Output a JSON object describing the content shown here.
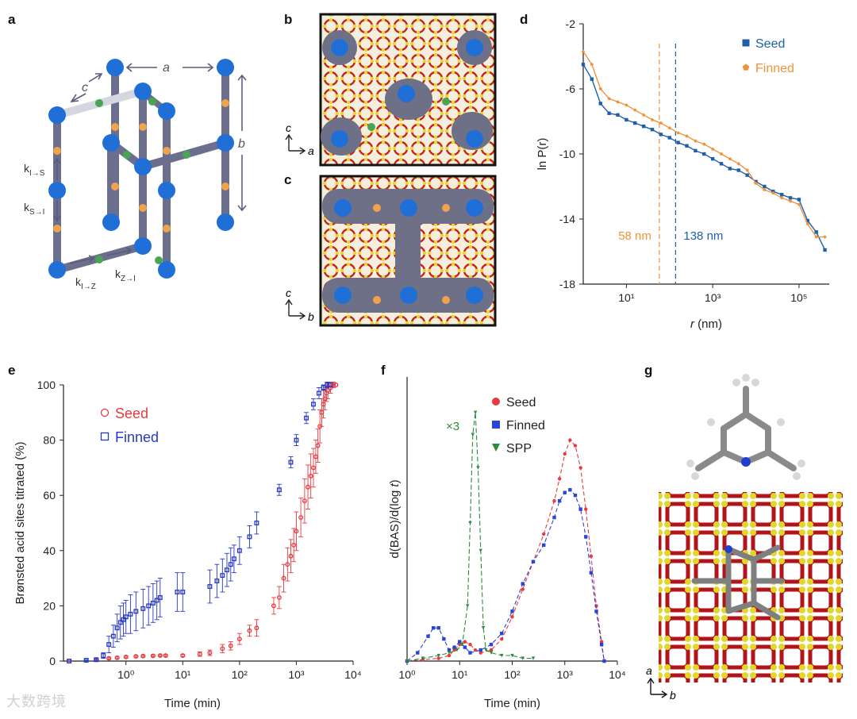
{
  "panel_labels": {
    "a": "a",
    "b": "b",
    "c": "c",
    "d": "d",
    "e": "e",
    "f": "f",
    "g": "g"
  },
  "panel_a": {
    "lattice_a": "a",
    "lattice_b": "b",
    "lattice_c": "c",
    "k_I_S": "k",
    "k_I_S_sub": "I→S",
    "k_S_I": "k",
    "k_S_I_sub": "S→I",
    "k_I_Z": "k",
    "k_I_Z_sub": "I→Z",
    "k_Z_I": "k",
    "k_Z_I_sub": "Z→I",
    "colors": {
      "site": "#1f6fd6",
      "bar": "#6b6e8c",
      "green": "#4aa552",
      "orange": "#f0a34c"
    }
  },
  "panel_b": {
    "axis_up": "c",
    "axis_right": "a"
  },
  "panel_c": {
    "axis_up": "c",
    "axis_right": "b"
  },
  "panel_g": {
    "axis_up": "a",
    "axis_right": "b"
  },
  "chart_data": [
    {
      "id": "d",
      "type": "line",
      "title": "",
      "xlabel": "r (nm)",
      "xlabel_italic": "r",
      "xlabel_unit": " (nm)",
      "ylabel": "ln P(r)",
      "x_scale": "log10",
      "xlim_exp": [
        0,
        5.7
      ],
      "ylim": [
        -18,
        -2
      ],
      "xticks": [
        "10¹",
        "10³",
        "10⁵"
      ],
      "xtick_exps": [
        1,
        3,
        5
      ],
      "yticks": [
        -18,
        -14,
        -10,
        -6,
        -2
      ],
      "legend_position": "top-right",
      "series": [
        {
          "name": "Seed",
          "color": "#1f5fa8",
          "marker": "square",
          "log_x": [
            0,
            0.2,
            0.4,
            0.6,
            0.8,
            1.0,
            1.2,
            1.4,
            1.6,
            1.8,
            2.0,
            2.2,
            2.4,
            2.6,
            2.8,
            3.0,
            3.2,
            3.4,
            3.6,
            3.8,
            4.0,
            4.2,
            4.4,
            4.6,
            4.8,
            5.0,
            5.2,
            5.4,
            5.6
          ],
          "y": [
            -4.5,
            -5.4,
            -6.9,
            -7.5,
            -7.6,
            -7.9,
            -8.1,
            -8.3,
            -8.5,
            -8.8,
            -9.0,
            -9.3,
            -9.5,
            -9.8,
            -10.0,
            -10.3,
            -10.6,
            -10.9,
            -11.0,
            -11.3,
            -11.7,
            -12.0,
            -12.3,
            -12.5,
            -12.7,
            -12.8,
            -14.1,
            -14.8,
            -15.9
          ]
        },
        {
          "name": "Finned",
          "color": "#f0923a",
          "marker": "pentagon",
          "log_x": [
            0,
            0.2,
            0.4,
            0.6,
            0.8,
            1.0,
            1.2,
            1.4,
            1.6,
            1.8,
            2.0,
            2.2,
            2.4,
            2.6,
            2.8,
            3.0,
            3.2,
            3.4,
            3.6,
            3.8,
            4.0,
            4.2,
            4.4,
            4.6,
            4.8,
            5.0,
            5.2,
            5.4,
            5.6
          ],
          "y": [
            -3.7,
            -4.5,
            -6.0,
            -6.6,
            -6.8,
            -7.0,
            -7.3,
            -7.6,
            -7.9,
            -8.1,
            -8.4,
            -8.7,
            -8.9,
            -9.2,
            -9.4,
            -9.7,
            -10.0,
            -10.3,
            -10.6,
            -11.0,
            -11.8,
            -12.2,
            -12.4,
            -12.7,
            -12.9,
            -13.1,
            -14.3,
            -15.1,
            -15.1
          ]
        }
      ],
      "annotations": [
        {
          "text": "58 nm",
          "x_nm": 58,
          "color": "#f0923a"
        },
        {
          "text": "138 nm",
          "x_nm": 138,
          "color": "#1f5fa8"
        }
      ]
    },
    {
      "id": "e",
      "type": "scatter",
      "xlabel": "Time (min)",
      "ylabel": "Brønsted acid sites titrated (%)",
      "x_scale": "log10",
      "xlim_exp": [
        -1.1,
        4
      ],
      "ylim": [
        0,
        100
      ],
      "xticks": [
        "10⁰",
        "10¹",
        "10²",
        "10³",
        "10⁴"
      ],
      "xtick_exps": [
        0,
        1,
        2,
        3,
        4
      ],
      "yticks": [
        0,
        20,
        40,
        60,
        80,
        100
      ],
      "legend_position": "top-left",
      "series": [
        {
          "name": "Seed",
          "color": "#e8393f",
          "marker": "open-circle",
          "x": [
            0.1,
            0.3,
            0.5,
            0.7,
            1,
            1.5,
            2,
            3,
            4,
            5,
            10,
            20,
            30,
            50,
            70,
            100,
            150,
            200,
            400,
            500,
            600,
            700,
            800,
            900,
            1000,
            1200,
            1400,
            1600,
            1800,
            2000,
            2200,
            2400,
            2600,
            2800,
            3000,
            3200,
            3400,
            3600,
            4000,
            4500,
            5000
          ],
          "y": [
            0,
            0.5,
            1,
            1.2,
            1.5,
            1.7,
            1.8,
            1.9,
            2,
            2,
            2,
            2.5,
            3,
            4.5,
            5.5,
            8,
            11,
            12,
            20,
            23,
            30,
            35,
            38,
            42,
            47,
            52,
            58,
            63,
            67,
            70,
            74,
            78,
            85,
            90,
            93,
            95,
            97,
            98,
            99,
            100,
            100
          ],
          "err": [
            0,
            0.2,
            0.3,
            0.3,
            0.3,
            0.3,
            0.3,
            0.3,
            0.3,
            0.3,
            0.4,
            0.8,
            1,
            1.5,
            1.5,
            2,
            2,
            3,
            3,
            4,
            5,
            6,
            6,
            6,
            7,
            7,
            8,
            8,
            8,
            7,
            6,
            6,
            6,
            5,
            5,
            4,
            3,
            3,
            2,
            1,
            0
          ]
        },
        {
          "name": "Finned",
          "color": "#2638c8",
          "marker": "open-square",
          "x": [
            0.1,
            0.2,
            0.3,
            0.4,
            0.5,
            0.6,
            0.7,
            0.8,
            0.9,
            1,
            1.2,
            1.5,
            2,
            2.5,
            3,
            3.5,
            4,
            8,
            10,
            30,
            40,
            50,
            60,
            70,
            80,
            100,
            150,
            200,
            500,
            800,
            1000,
            1500,
            2000,
            2500,
            3000,
            3500,
            4000
          ],
          "y": [
            0,
            0.3,
            0.5,
            2,
            6,
            9,
            12,
            14,
            15,
            16,
            17,
            18,
            19,
            20,
            21,
            22,
            23,
            25,
            25,
            27,
            29,
            31,
            33,
            35,
            37,
            40,
            45,
            50,
            62,
            72,
            80,
            88,
            93,
            97,
            99,
            100,
            100
          ],
          "err": [
            0,
            0.2,
            0.3,
            1,
            3,
            4,
            5,
            6,
            6,
            6,
            7,
            7,
            7,
            7,
            7,
            7,
            7,
            7,
            7,
            6,
            6,
            6,
            6,
            6,
            5,
            5,
            4,
            4,
            2,
            2,
            2,
            2,
            2,
            2,
            1,
            1,
            0
          ]
        }
      ]
    },
    {
      "id": "f",
      "type": "line",
      "xlabel": "Time (min)",
      "ylabel": "d(BAS)/d(log t)",
      "ylabel_prefix": "d(BAS)/d(log ",
      "ylabel_italic": "t",
      "ylabel_suffix": ")",
      "x_scale": "log10",
      "xlim_exp": [
        0,
        4
      ],
      "ylim": [
        0,
        1
      ],
      "xticks": [
        "10⁰",
        "10¹",
        "10²",
        "10³",
        "10⁴"
      ],
      "xtick_exps": [
        0,
        1,
        2,
        3,
        4
      ],
      "legend_position": "top-center",
      "annotation": "×3",
      "series": [
        {
          "name": "Seed",
          "color": "#e8393f",
          "marker": "circle",
          "log_x": [
            0,
            0.3,
            0.6,
            0.8,
            0.9,
            1.0,
            1.1,
            1.2,
            1.3,
            1.4,
            1.6,
            1.8,
            2.0,
            2.2,
            2.4,
            2.6,
            2.8,
            2.9,
            3.0,
            3.1,
            3.2,
            3.3,
            3.4,
            3.5,
            3.6,
            3.7,
            3.75
          ],
          "y": [
            0,
            0.005,
            0.01,
            0.02,
            0.04,
            0.06,
            0.07,
            0.06,
            0.04,
            0.03,
            0.04,
            0.08,
            0.16,
            0.26,
            0.36,
            0.46,
            0.58,
            0.66,
            0.75,
            0.8,
            0.78,
            0.7,
            0.55,
            0.38,
            0.2,
            0.07,
            0.0
          ]
        },
        {
          "name": "Finned",
          "color": "#2a44d6",
          "marker": "square",
          "log_x": [
            0,
            0.2,
            0.4,
            0.5,
            0.6,
            0.7,
            0.8,
            0.9,
            1.0,
            1.1,
            1.2,
            1.4,
            1.6,
            1.8,
            2.0,
            2.2,
            2.4,
            2.6,
            2.8,
            2.9,
            3.0,
            3.1,
            3.2,
            3.3,
            3.4,
            3.5,
            3.6,
            3.7,
            3.75
          ],
          "y": [
            0,
            0.03,
            0.09,
            0.12,
            0.12,
            0.08,
            0.04,
            0.05,
            0.07,
            0.05,
            0.03,
            0.04,
            0.06,
            0.1,
            0.18,
            0.28,
            0.36,
            0.42,
            0.52,
            0.58,
            0.61,
            0.62,
            0.6,
            0.55,
            0.45,
            0.32,
            0.18,
            0.06,
            0.0
          ]
        },
        {
          "name": "SPP",
          "color": "#2e8a3c",
          "marker": "triangle-down",
          "log_x": [
            0,
            0.3,
            0.6,
            0.8,
            0.95,
            1.05,
            1.15,
            1.2,
            1.25,
            1.3,
            1.35,
            1.4,
            1.45,
            1.5,
            1.6,
            1.8,
            2.0,
            2.2,
            2.4
          ],
          "y": [
            0,
            0.01,
            0.02,
            0.03,
            0.04,
            0.06,
            0.2,
            0.5,
            0.82,
            0.9,
            0.7,
            0.4,
            0.12,
            0.04,
            0.03,
            0.02,
            0.02,
            0.01,
            0.01
          ]
        }
      ]
    }
  ],
  "watermark": "大数跨境"
}
